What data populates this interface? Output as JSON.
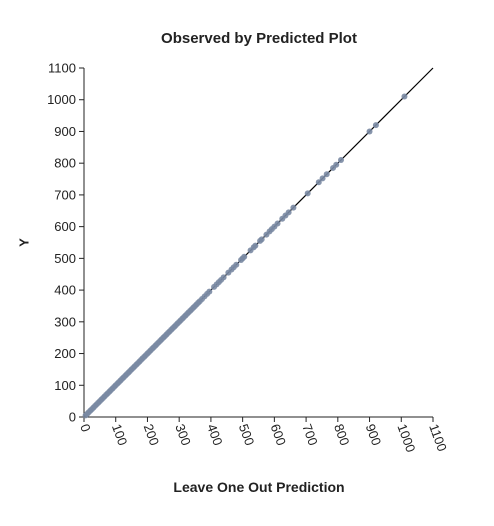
{
  "chart_data": {
    "type": "scatter",
    "title": "Observed by Predicted Plot",
    "xlabel": "Leave One Out Prediction",
    "ylabel": "Y",
    "xlim": [
      0,
      1100
    ],
    "ylim": [
      0,
      1100
    ],
    "xticks": [
      "0",
      "100",
      "200",
      "300",
      "400",
      "500",
      "600",
      "700",
      "800",
      "900",
      "1000",
      "1100"
    ],
    "yticks": [
      "0",
      "100",
      "200",
      "300",
      "400",
      "500",
      "600",
      "700",
      "800",
      "900",
      "1000",
      "1100"
    ],
    "reference_line": {
      "from": [
        0,
        0
      ],
      "to": [
        1100,
        1100
      ],
      "color": "#000000"
    },
    "point_color": "#7a8aa3",
    "grid": false,
    "points": [
      [
        5,
        5
      ],
      [
        10,
        10
      ],
      [
        15,
        15
      ],
      [
        20,
        20
      ],
      [
        25,
        25
      ],
      [
        30,
        30
      ],
      [
        35,
        35
      ],
      [
        40,
        40
      ],
      [
        45,
        45
      ],
      [
        50,
        50
      ],
      [
        55,
        55
      ],
      [
        60,
        60
      ],
      [
        65,
        65
      ],
      [
        70,
        70
      ],
      [
        75,
        75
      ],
      [
        80,
        80
      ],
      [
        85,
        85
      ],
      [
        90,
        90
      ],
      [
        95,
        95
      ],
      [
        100,
        100
      ],
      [
        105,
        105
      ],
      [
        110,
        110
      ],
      [
        115,
        115
      ],
      [
        120,
        120
      ],
      [
        125,
        125
      ],
      [
        130,
        130
      ],
      [
        135,
        135
      ],
      [
        140,
        140
      ],
      [
        145,
        145
      ],
      [
        150,
        150
      ],
      [
        155,
        155
      ],
      [
        160,
        160
      ],
      [
        165,
        165
      ],
      [
        170,
        170
      ],
      [
        175,
        175
      ],
      [
        180,
        180
      ],
      [
        185,
        185
      ],
      [
        190,
        190
      ],
      [
        195,
        195
      ],
      [
        200,
        200
      ],
      [
        205,
        205
      ],
      [
        210,
        210
      ],
      [
        215,
        215
      ],
      [
        220,
        220
      ],
      [
        225,
        225
      ],
      [
        230,
        230
      ],
      [
        235,
        235
      ],
      [
        240,
        240
      ],
      [
        245,
        245
      ],
      [
        250,
        250
      ],
      [
        255,
        255
      ],
      [
        260,
        260
      ],
      [
        265,
        265
      ],
      [
        270,
        270
      ],
      [
        275,
        275
      ],
      [
        280,
        280
      ],
      [
        285,
        285
      ],
      [
        290,
        290
      ],
      [
        295,
        295
      ],
      [
        300,
        300
      ],
      [
        305,
        305
      ],
      [
        310,
        310
      ],
      [
        315,
        315
      ],
      [
        320,
        320
      ],
      [
        325,
        325
      ],
      [
        330,
        330
      ],
      [
        335,
        335
      ],
      [
        340,
        340
      ],
      [
        345,
        345
      ],
      [
        350,
        350
      ],
      [
        355,
        355
      ],
      [
        360,
        360
      ],
      [
        365,
        365
      ],
      [
        372,
        372
      ],
      [
        380,
        380
      ],
      [
        388,
        388
      ],
      [
        395,
        395
      ],
      [
        410,
        410
      ],
      [
        418,
        418
      ],
      [
        425,
        425
      ],
      [
        432,
        432
      ],
      [
        440,
        440
      ],
      [
        455,
        455
      ],
      [
        465,
        465
      ],
      [
        472,
        472
      ],
      [
        480,
        480
      ],
      [
        495,
        495
      ],
      [
        500,
        500
      ],
      [
        505,
        505
      ],
      [
        525,
        525
      ],
      [
        535,
        535
      ],
      [
        540,
        540
      ],
      [
        555,
        555
      ],
      [
        560,
        560
      ],
      [
        575,
        575
      ],
      [
        585,
        585
      ],
      [
        592,
        592
      ],
      [
        600,
        600
      ],
      [
        610,
        610
      ],
      [
        625,
        625
      ],
      [
        635,
        635
      ],
      [
        645,
        645
      ],
      [
        660,
        660
      ],
      [
        705,
        705
      ],
      [
        740,
        740
      ],
      [
        752,
        752
      ],
      [
        765,
        765
      ],
      [
        785,
        785
      ],
      [
        795,
        795
      ],
      [
        810,
        810
      ],
      [
        900,
        900
      ],
      [
        920,
        920
      ],
      [
        1010,
        1010
      ]
    ]
  }
}
